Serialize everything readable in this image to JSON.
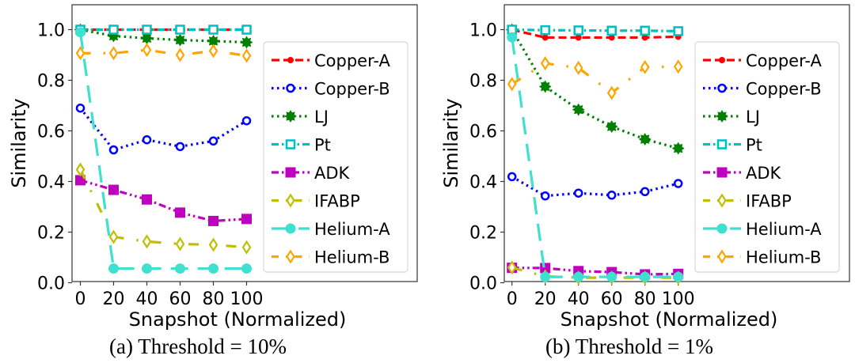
{
  "chart_data": [
    {
      "id": "a",
      "type": "line",
      "caption": "(a)  Threshold = 10%",
      "xlabel": "Snapshot (Normalized)",
      "ylabel": "Similarity",
      "x": [
        0,
        20,
        40,
        60,
        80,
        100
      ],
      "xticks": [
        0,
        20,
        40,
        60,
        80,
        100
      ],
      "xtick_labels": [
        "0",
        "20",
        "40",
        "60",
        "80",
        "100"
      ],
      "yticks": [
        0.0,
        0.2,
        0.4,
        0.6,
        0.8,
        1.0
      ],
      "ytick_labels": [
        "0.0",
        "0.2",
        "0.4",
        "0.6",
        "0.8",
        "1.0"
      ],
      "ylim": [
        0.0,
        1.1
      ],
      "xlim": [
        -5,
        165
      ],
      "grid": false,
      "legend_position": "right",
      "series": [
        {
          "name": "Copper-A",
          "values": [
            1.0,
            1.0,
            1.0,
            1.0,
            1.0,
            1.0
          ]
        },
        {
          "name": "Copper-B",
          "values": [
            0.69,
            0.525,
            0.565,
            0.538,
            0.56,
            0.64
          ]
        },
        {
          "name": "LJ",
          "values": [
            1.0,
            0.975,
            0.966,
            0.959,
            0.955,
            0.95
          ]
        },
        {
          "name": "Pt",
          "values": [
            1.0,
            1.0,
            1.0,
            1.0,
            1.0,
            1.0
          ]
        },
        {
          "name": "ADK",
          "values": [
            0.405,
            0.367,
            0.329,
            0.277,
            0.244,
            0.252
          ]
        },
        {
          "name": "IFABP",
          "values": [
            0.447,
            0.181,
            0.163,
            0.153,
            0.15,
            0.14
          ]
        },
        {
          "name": "Helium-A",
          "values": [
            0.99,
            0.056,
            0.056,
            0.056,
            0.056,
            0.056
          ]
        },
        {
          "name": "Helium-B",
          "values": [
            0.907,
            0.907,
            0.92,
            0.9,
            0.916,
            0.897
          ]
        }
      ]
    },
    {
      "id": "b",
      "type": "line",
      "caption": "(b)  Threshold = 1%",
      "xlabel": "Snapshot (Normalized)",
      "ylabel": "Similarity",
      "x": [
        0,
        20,
        40,
        60,
        80,
        100
      ],
      "xticks": [
        0,
        20,
        40,
        60,
        80,
        100
      ],
      "xtick_labels": [
        "0",
        "20",
        "40",
        "60",
        "80",
        "100"
      ],
      "yticks": [
        0.0,
        0.2,
        0.4,
        0.6,
        0.8,
        1.0
      ],
      "ytick_labels": [
        "0.0",
        "0.2",
        "0.4",
        "0.6",
        "0.8",
        "1.0"
      ],
      "ylim": [
        0.0,
        1.1
      ],
      "xlim": [
        -5,
        165
      ],
      "grid": false,
      "legend_position": "right",
      "series": [
        {
          "name": "Copper-A",
          "values": [
            1.0,
            0.969,
            0.969,
            0.969,
            0.969,
            0.972
          ]
        },
        {
          "name": "Copper-B",
          "values": [
            0.419,
            0.343,
            0.354,
            0.346,
            0.36,
            0.392
          ]
        },
        {
          "name": "LJ",
          "values": [
            1.0,
            0.775,
            0.684,
            0.617,
            0.567,
            0.531
          ]
        },
        {
          "name": "Pt",
          "values": [
            1.0,
            0.998,
            0.997,
            0.996,
            0.996,
            0.994
          ]
        },
        {
          "name": "ADK",
          "values": [
            0.059,
            0.058,
            0.046,
            0.042,
            0.033,
            0.035
          ]
        },
        {
          "name": "IFABP",
          "values": [
            0.06,
            0.025,
            0.02,
            0.02,
            0.02,
            0.02
          ]
        },
        {
          "name": "Helium-A",
          "values": [
            0.97,
            0.023,
            0.023,
            0.023,
            0.023,
            0.023
          ]
        },
        {
          "name": "Helium-B",
          "values": [
            0.785,
            0.867,
            0.849,
            0.75,
            0.852,
            0.854
          ]
        }
      ]
    }
  ],
  "series_styles": {
    "Copper-A": {
      "color": "#ff0000",
      "marker": "filled-circle-small",
      "line": "dashed"
    },
    "Copper-B": {
      "color": "#0000ff",
      "marker": "open-circle",
      "line": "dotted"
    },
    "LJ": {
      "color": "#008000",
      "marker": "filled-star",
      "line": "dotted"
    },
    "Pt": {
      "color": "#00bfbf",
      "marker": "open-square",
      "line": "dashdot"
    },
    "ADK": {
      "color": "#bf00bf",
      "marker": "filled-square",
      "line": "dashdotdot"
    },
    "IFABP": {
      "color": "#bfbf00",
      "marker": "open-diamond",
      "line": "loose-dashdot"
    },
    "Helium-A": {
      "color": "#40e0d0",
      "marker": "filled-circle",
      "line": "long-dashed"
    },
    "Helium-B": {
      "color": "#ffa500",
      "marker": "open-diamond",
      "line": "loose-dashdot"
    }
  }
}
